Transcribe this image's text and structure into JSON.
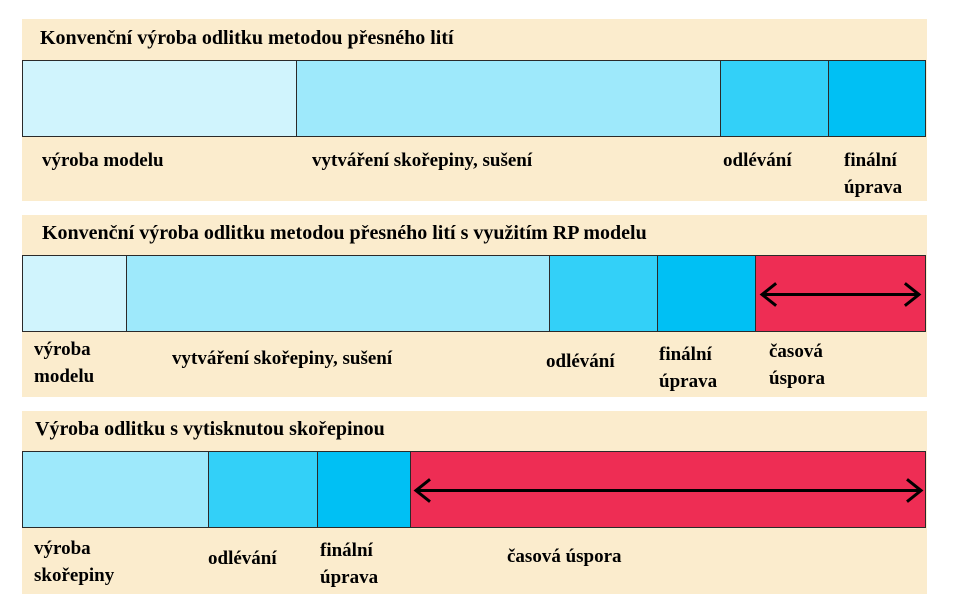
{
  "rows": [
    {
      "title": "Konvenční výroba odlitku metodou přesného lití",
      "segments": [
        {
          "line1": "výroba modelu",
          "line2": "",
          "color": "#d0f4fd"
        },
        {
          "line1": "vytváření skořepiny, sušení",
          "line2": "",
          "color": "#9ee9fb"
        },
        {
          "line1": "odlévání",
          "line2": "",
          "color": "#33d0f8"
        },
        {
          "line1": "finální",
          "line2": "úprava",
          "color": "#00c0f4"
        }
      ]
    },
    {
      "title": "Konvenční výroba odlitku metodou přesného lití s využitím RP modelu",
      "segments": [
        {
          "line1": "výroba",
          "line2": "modelu",
          "color": "#d0f4fd"
        },
        {
          "line1": "vytváření skořepiny, sušení",
          "line2": "",
          "color": "#9ee9fb"
        },
        {
          "line1": "odlévání",
          "line2": "",
          "color": "#33d0f8"
        },
        {
          "line1": "finální",
          "line2": "úprava",
          "color": "#00c0f4"
        },
        {
          "line1": "časová",
          "line2": "úspora",
          "color": "#ee2d54"
        }
      ]
    },
    {
      "title": "Výroba odlitku s vytisknutou skořepinou",
      "segments": [
        {
          "line1": "výroba",
          "line2": "skořepiny",
          "color": "#9ee9fb"
        },
        {
          "line1": "odlévání",
          "line2": "",
          "color": "#33d0f8"
        },
        {
          "line1": "finální",
          "line2": "úprava",
          "color": "#00c0f4"
        },
        {
          "line1": "časová úspora",
          "line2": "",
          "color": "#ee2d54"
        }
      ]
    }
  ]
}
